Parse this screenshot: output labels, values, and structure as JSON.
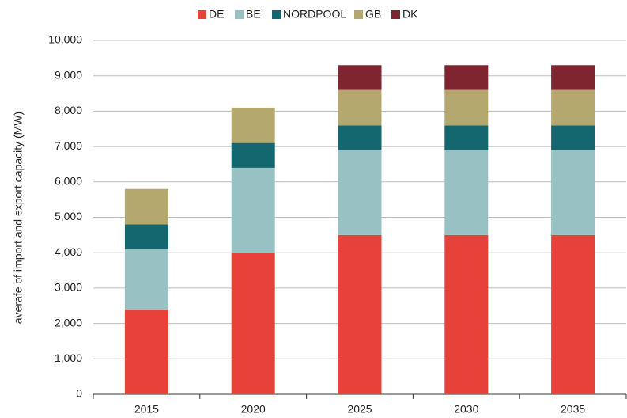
{
  "chart_data": {
    "type": "stacked_bar",
    "y_label": "averafe of import and export capacity (MW)",
    "categories": [
      "2015",
      "2020",
      "2025",
      "2030",
      "2035"
    ],
    "series": [
      {
        "name": "DE",
        "color": "#e8413a",
        "values": [
          2400,
          4000,
          4500,
          4500,
          4500
        ]
      },
      {
        "name": "BE",
        "color": "#98c1c3",
        "values": [
          1700,
          2400,
          2400,
          2400,
          2400
        ]
      },
      {
        "name": "NORDPOOL",
        "color": "#14666f",
        "values": [
          700,
          700,
          700,
          700,
          700
        ]
      },
      {
        "name": "GB",
        "color": "#b5a86e",
        "values": [
          1000,
          1000,
          1000,
          1000,
          1000
        ]
      },
      {
        "name": "DK",
        "color": "#7e2530",
        "values": [
          0,
          0,
          700,
          700,
          700
        ]
      }
    ],
    "ylim": [
      0,
      10000
    ],
    "yticks": [
      0,
      {
        "value": 1000,
        "label": "1,000"
      },
      {
        "value": 2000,
        "label": "2,000"
      },
      {
        "value": 3000,
        "label": "3,000"
      },
      {
        "value": 4000,
        "label": "4,000"
      },
      {
        "value": 5000,
        "label": "5,000"
      },
      {
        "value": 6000,
        "label": "6,000"
      },
      {
        "value": 7000,
        "label": "7,000"
      },
      {
        "value": 8000,
        "label": "8,000"
      },
      {
        "value": 9000,
        "label": "9,000"
      },
      {
        "value": 10000,
        "label": "10,000"
      }
    ],
    "grid": true,
    "legend": "top"
  }
}
